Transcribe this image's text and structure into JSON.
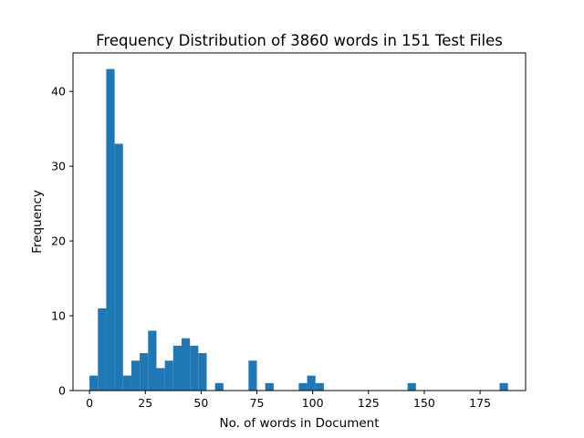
{
  "chart_data": {
    "type": "bar",
    "title": "Frequency Distribution of 3860 words in 151 Test Files",
    "xlabel": "No. of words in Document",
    "ylabel": "Frequency",
    "xlim": [
      -7.4,
      195.4
    ],
    "ylim": [
      0,
      45.15
    ],
    "xticks": [
      0,
      25,
      50,
      75,
      100,
      125,
      150,
      175
    ],
    "yticks": [
      0,
      10,
      20,
      30,
      40
    ],
    "grid": false,
    "bar_color": "#1f77b4",
    "bin_width": 3.75,
    "bins": [
      {
        "x0": 0.0,
        "value": 2
      },
      {
        "x0": 3.75,
        "value": 11
      },
      {
        "x0": 7.5,
        "value": 43
      },
      {
        "x0": 11.25,
        "value": 33
      },
      {
        "x0": 15.0,
        "value": 2
      },
      {
        "x0": 18.75,
        "value": 4
      },
      {
        "x0": 22.5,
        "value": 5
      },
      {
        "x0": 26.25,
        "value": 8
      },
      {
        "x0": 30.0,
        "value": 3
      },
      {
        "x0": 33.75,
        "value": 4
      },
      {
        "x0": 37.5,
        "value": 6
      },
      {
        "x0": 41.25,
        "value": 7
      },
      {
        "x0": 45.0,
        "value": 6
      },
      {
        "x0": 48.75,
        "value": 5
      },
      {
        "x0": 56.25,
        "value": 1
      },
      {
        "x0": 71.25,
        "value": 4
      },
      {
        "x0": 78.75,
        "value": 1
      },
      {
        "x0": 93.75,
        "value": 1
      },
      {
        "x0": 97.5,
        "value": 2
      },
      {
        "x0": 101.25,
        "value": 1
      },
      {
        "x0": 142.5,
        "value": 1
      },
      {
        "x0": 183.75,
        "value": 1
      }
    ]
  }
}
